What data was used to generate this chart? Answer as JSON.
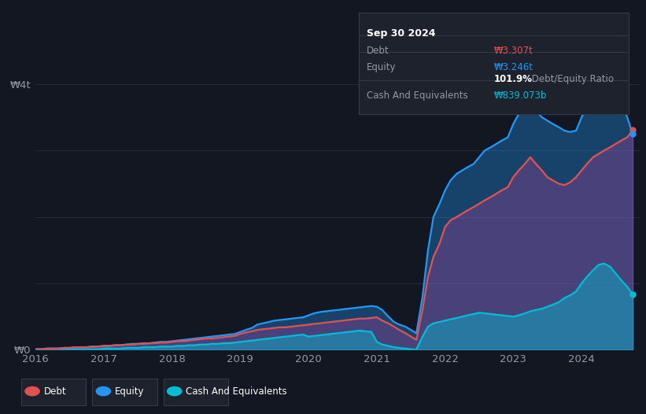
{
  "background_color": "#131722",
  "plot_bg_color": "#131722",
  "grid_color": "#2a2e39",
  "tooltip_title": "Sep 30 2024",
  "tooltip_debt_label": "Debt",
  "tooltip_debt_value": "₩3.307t",
  "tooltip_equity_label": "Equity",
  "tooltip_equity_value": "₩3.246t",
  "tooltip_ratio_bold": "101.9%",
  "tooltip_ratio_text": " Debt/Equity Ratio",
  "tooltip_cash_label": "Cash And Equivalents",
  "tooltip_cash_value": "₩839.073b",
  "ylabel_top": "₩4t",
  "ylabel_bottom": "₩0",
  "debt_color": "#e05252",
  "equity_color": "#2196f3",
  "cash_color": "#00bcd4",
  "legend_labels": [
    "Debt",
    "Equity",
    "Cash And Equivalents"
  ],
  "years": [
    2016.0,
    2016.08,
    2016.17,
    2016.25,
    2016.33,
    2016.42,
    2016.5,
    2016.58,
    2016.67,
    2016.75,
    2016.83,
    2016.92,
    2017.0,
    2017.08,
    2017.17,
    2017.25,
    2017.33,
    2017.42,
    2017.5,
    2017.58,
    2017.67,
    2017.75,
    2017.83,
    2017.92,
    2018.0,
    2018.08,
    2018.17,
    2018.25,
    2018.33,
    2018.42,
    2018.5,
    2018.58,
    2018.67,
    2018.75,
    2018.83,
    2018.92,
    2019.0,
    2019.08,
    2019.17,
    2019.25,
    2019.33,
    2019.42,
    2019.5,
    2019.58,
    2019.67,
    2019.75,
    2019.83,
    2019.92,
    2020.0,
    2020.08,
    2020.17,
    2020.25,
    2020.33,
    2020.42,
    2020.5,
    2020.58,
    2020.67,
    2020.75,
    2020.83,
    2020.92,
    2021.0,
    2021.08,
    2021.17,
    2021.25,
    2021.33,
    2021.42,
    2021.5,
    2021.58,
    2021.67,
    2021.75,
    2021.83,
    2021.92,
    2022.0,
    2022.08,
    2022.17,
    2022.25,
    2022.33,
    2022.42,
    2022.5,
    2022.58,
    2022.67,
    2022.75,
    2022.83,
    2022.92,
    2023.0,
    2023.08,
    2023.17,
    2023.25,
    2023.33,
    2023.42,
    2023.5,
    2023.58,
    2023.67,
    2023.75,
    2023.83,
    2023.92,
    2024.0,
    2024.08,
    2024.17,
    2024.25,
    2024.33,
    2024.42,
    2024.5,
    2024.58,
    2024.67,
    2024.75
  ],
  "debt": [
    0.01,
    0.01,
    0.02,
    0.02,
    0.02,
    0.03,
    0.03,
    0.04,
    0.04,
    0.04,
    0.05,
    0.05,
    0.06,
    0.06,
    0.07,
    0.07,
    0.08,
    0.08,
    0.09,
    0.09,
    0.1,
    0.1,
    0.11,
    0.11,
    0.12,
    0.13,
    0.13,
    0.14,
    0.15,
    0.16,
    0.17,
    0.17,
    0.18,
    0.19,
    0.2,
    0.21,
    0.24,
    0.26,
    0.28,
    0.3,
    0.31,
    0.32,
    0.33,
    0.34,
    0.34,
    0.35,
    0.36,
    0.37,
    0.38,
    0.39,
    0.4,
    0.41,
    0.42,
    0.43,
    0.44,
    0.45,
    0.46,
    0.47,
    0.47,
    0.48,
    0.49,
    0.44,
    0.4,
    0.35,
    0.3,
    0.25,
    0.2,
    0.15,
    0.6,
    1.1,
    1.4,
    1.6,
    1.85,
    1.95,
    2.0,
    2.05,
    2.1,
    2.15,
    2.2,
    2.25,
    2.3,
    2.35,
    2.4,
    2.45,
    2.6,
    2.7,
    2.8,
    2.9,
    2.8,
    2.7,
    2.6,
    2.55,
    2.5,
    2.48,
    2.52,
    2.6,
    2.7,
    2.8,
    2.9,
    2.95,
    3.0,
    3.05,
    3.1,
    3.15,
    3.2,
    3.307
  ],
  "equity": [
    0.01,
    0.01,
    0.02,
    0.02,
    0.02,
    0.03,
    0.03,
    0.04,
    0.04,
    0.04,
    0.05,
    0.05,
    0.06,
    0.06,
    0.07,
    0.07,
    0.08,
    0.09,
    0.09,
    0.1,
    0.1,
    0.11,
    0.12,
    0.12,
    0.13,
    0.14,
    0.15,
    0.16,
    0.17,
    0.18,
    0.19,
    0.2,
    0.21,
    0.22,
    0.23,
    0.24,
    0.27,
    0.3,
    0.33,
    0.38,
    0.4,
    0.42,
    0.44,
    0.45,
    0.46,
    0.47,
    0.48,
    0.49,
    0.52,
    0.55,
    0.57,
    0.58,
    0.59,
    0.6,
    0.61,
    0.62,
    0.63,
    0.64,
    0.65,
    0.66,
    0.65,
    0.6,
    0.5,
    0.42,
    0.38,
    0.35,
    0.3,
    0.25,
    0.8,
    1.5,
    2.0,
    2.2,
    2.4,
    2.55,
    2.65,
    2.7,
    2.75,
    2.8,
    2.9,
    3.0,
    3.05,
    3.1,
    3.15,
    3.2,
    3.4,
    3.55,
    3.65,
    3.7,
    3.6,
    3.5,
    3.45,
    3.4,
    3.35,
    3.3,
    3.28,
    3.3,
    3.5,
    3.65,
    3.8,
    3.9,
    3.95,
    3.9,
    3.85,
    3.7,
    3.5,
    3.246
  ],
  "cash": [
    0.005,
    0.005,
    0.01,
    0.01,
    0.01,
    0.01,
    0.01,
    0.01,
    0.01,
    0.01,
    0.01,
    0.01,
    0.02,
    0.02,
    0.02,
    0.02,
    0.03,
    0.03,
    0.03,
    0.04,
    0.04,
    0.04,
    0.05,
    0.05,
    0.05,
    0.06,
    0.06,
    0.07,
    0.07,
    0.08,
    0.08,
    0.09,
    0.09,
    0.1,
    0.1,
    0.11,
    0.12,
    0.13,
    0.14,
    0.15,
    0.16,
    0.17,
    0.18,
    0.19,
    0.2,
    0.21,
    0.22,
    0.23,
    0.2,
    0.21,
    0.22,
    0.23,
    0.24,
    0.25,
    0.26,
    0.27,
    0.28,
    0.29,
    0.28,
    0.27,
    0.12,
    0.08,
    0.06,
    0.04,
    0.03,
    0.02,
    0.01,
    0.005,
    0.2,
    0.35,
    0.4,
    0.42,
    0.44,
    0.46,
    0.48,
    0.5,
    0.52,
    0.54,
    0.56,
    0.55,
    0.54,
    0.53,
    0.52,
    0.51,
    0.5,
    0.52,
    0.55,
    0.58,
    0.6,
    0.62,
    0.65,
    0.68,
    0.72,
    0.78,
    0.82,
    0.88,
    1.0,
    1.1,
    1.2,
    1.28,
    1.3,
    1.25,
    1.15,
    1.05,
    0.95,
    0.839
  ],
  "ylim": [
    0,
    4.3
  ],
  "xlim": [
    2016.0,
    2024.85
  ],
  "yticks": [
    0.0,
    1.0,
    2.0,
    3.0,
    4.0
  ],
  "xticks": [
    2016,
    2017,
    2018,
    2019,
    2020,
    2021,
    2022,
    2023,
    2024
  ]
}
